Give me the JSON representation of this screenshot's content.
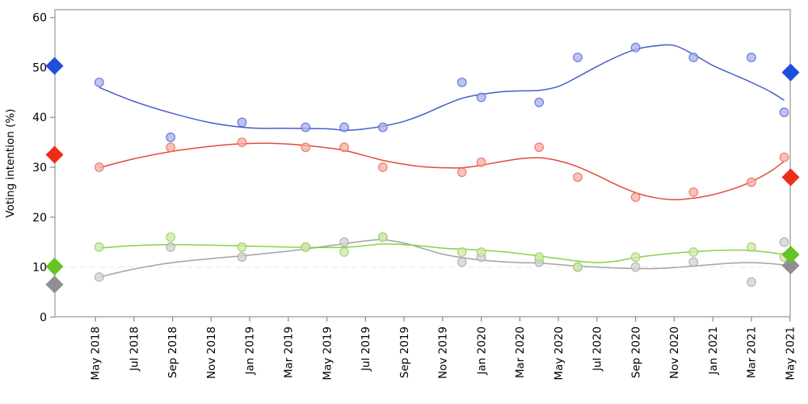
{
  "chart_data": {
    "type": "scatter",
    "title": "",
    "xlabel": "",
    "ylabel": "Voting intention (%)",
    "ylim": [
      0,
      60
    ],
    "yticks": [
      0,
      10,
      20,
      30,
      40,
      50,
      60
    ],
    "grid": "off",
    "legend": "none",
    "x_tick_labels": [
      "May 2018",
      "Jul 2018",
      "Sep 2018",
      "Nov 2018",
      "Jan 2019",
      "Mar 2019",
      "May 2019",
      "Jul 2019",
      "Sep 2019",
      "Nov 2019",
      "Jan 2020",
      "Mar 2020",
      "May 2020",
      "Jul 2020",
      "Sep 2020",
      "Nov 2020",
      "Jan 2021",
      "Mar 2021",
      "May 2021"
    ],
    "reference_line": {
      "value": 10,
      "style": "dashed",
      "color": "#ededed"
    },
    "frame_color": "#a6a6a6",
    "tick_color": "#8c8c8c",
    "poll_dates": [
      "May 2018",
      "Sep 2018",
      "Dec 2018",
      "Apr 2019",
      "Jun 2019",
      "Aug 2019",
      "Dec 2019",
      "Jan 2020",
      "Apr 2020",
      "Jun 2020",
      "Sep 2020",
      "Dec 2020",
      "Mar 2021",
      "May 2021"
    ],
    "poll_month_index": [
      0.2,
      3.9,
      7.6,
      10.9,
      12.9,
      14.9,
      19,
      20,
      23,
      25,
      28,
      31,
      34,
      35.7
    ],
    "series": [
      {
        "name": "blue",
        "line_color": "#3c56c6",
        "point_fill": "#aab4ee",
        "point_stroke": "#5768d2",
        "diamond_color": "#1d4fdb",
        "values": [
          47,
          36,
          39,
          38,
          38,
          38,
          47,
          44,
          43,
          52,
          54,
          52,
          52,
          41
        ],
        "start_diamond": 50.3,
        "end_diamond": 49,
        "smooth": [
          [
            0.2,
            46
          ],
          [
            2,
            43.2
          ],
          [
            4,
            40.8
          ],
          [
            6,
            38.9
          ],
          [
            8,
            37.9
          ],
          [
            10,
            37.8
          ],
          [
            12,
            37.7
          ],
          [
            13,
            37.4
          ],
          [
            14,
            37.7
          ],
          [
            15,
            38.3
          ],
          [
            16,
            39.2
          ],
          [
            17,
            40.6
          ],
          [
            18,
            42.3
          ],
          [
            19,
            43.8
          ],
          [
            20,
            44.6
          ],
          [
            21,
            45.1
          ],
          [
            22,
            45.3
          ],
          [
            23,
            45.4
          ],
          [
            24,
            46.2
          ],
          [
            25,
            48.1
          ],
          [
            26,
            50.2
          ],
          [
            27,
            52.1
          ],
          [
            28,
            53.6
          ],
          [
            29,
            54.3
          ],
          [
            30,
            54.4
          ],
          [
            31,
            52.6
          ],
          [
            32,
            50.4
          ],
          [
            33,
            48.7
          ],
          [
            34,
            47
          ],
          [
            35,
            45.1
          ],
          [
            35.7,
            43.4
          ]
        ]
      },
      {
        "name": "red",
        "line_color": "#e0422e",
        "point_fill": "#f9aea6",
        "point_stroke": "#e8705f",
        "diamond_color": "#ee2d17",
        "values": [
          30,
          34,
          35,
          34,
          34,
          30,
          29,
          31,
          34,
          28,
          24,
          25,
          27,
          32
        ],
        "start_diamond": 32.5,
        "end_diamond": 28,
        "smooth": [
          [
            0.2,
            29.9
          ],
          [
            2,
            31.7
          ],
          [
            4,
            33.2
          ],
          [
            6,
            34.2
          ],
          [
            7.5,
            34.7
          ],
          [
            9,
            34.8
          ],
          [
            10.5,
            34.5
          ],
          [
            12,
            33.9
          ],
          [
            13,
            33.3
          ],
          [
            14,
            32.3
          ],
          [
            15,
            31.3
          ],
          [
            16,
            30.6
          ],
          [
            17,
            30.1
          ],
          [
            18,
            29.9
          ],
          [
            19,
            29.9
          ],
          [
            20,
            30.4
          ],
          [
            21,
            31.1
          ],
          [
            22,
            31.7
          ],
          [
            23,
            31.9
          ],
          [
            24,
            31.3
          ],
          [
            25,
            30.1
          ],
          [
            26,
            28.4
          ],
          [
            27,
            26.5
          ],
          [
            28,
            24.9
          ],
          [
            29,
            23.9
          ],
          [
            30,
            23.5
          ],
          [
            31,
            23.8
          ],
          [
            32,
            24.5
          ],
          [
            33,
            25.6
          ],
          [
            34,
            27.1
          ],
          [
            35,
            29.2
          ],
          [
            35.7,
            31.2
          ]
        ]
      },
      {
        "name": "green",
        "line_color": "#7fd03c",
        "point_fill": "#cfe9ab",
        "point_stroke": "#98cf5e",
        "diamond_color": "#64c421",
        "values": [
          14,
          16,
          14,
          14,
          13,
          16,
          13,
          13,
          12,
          10,
          12,
          13,
          14,
          12
        ],
        "start_diamond": 10.1,
        "end_diamond": 12.5,
        "smooth": [
          [
            0.2,
            13.8
          ],
          [
            2,
            14.3
          ],
          [
            4,
            14.5
          ],
          [
            6,
            14.4
          ],
          [
            8,
            14.2
          ],
          [
            10,
            14
          ],
          [
            12,
            13.9
          ],
          [
            13.5,
            14.1
          ],
          [
            14.8,
            14.6
          ],
          [
            16,
            14.5
          ],
          [
            17,
            14.2
          ],
          [
            18,
            13.8
          ],
          [
            19,
            13.6
          ],
          [
            20,
            13.4
          ],
          [
            21,
            13.1
          ],
          [
            22,
            12.7
          ],
          [
            23,
            12.2
          ],
          [
            24,
            11.7
          ],
          [
            25,
            11.2
          ],
          [
            26,
            10.9
          ],
          [
            27,
            11.2
          ],
          [
            28,
            11.9
          ],
          [
            29,
            12.4
          ],
          [
            30,
            12.8
          ],
          [
            31,
            13.1
          ],
          [
            32,
            13.3
          ],
          [
            33,
            13.4
          ],
          [
            34,
            13.3
          ],
          [
            35,
            12.9
          ],
          [
            35.7,
            12.5
          ]
        ]
      },
      {
        "name": "gray",
        "line_color": "#9e9e9e",
        "point_fill": "#d3d3d3",
        "point_stroke": "#ababab",
        "diamond_color": "#8f8f8f",
        "values": [
          8,
          14,
          12,
          14,
          15,
          16,
          11,
          12,
          11,
          10,
          10,
          11,
          7,
          15
        ],
        "start_diamond": 6.5,
        "end_diamond": 10.3,
        "smooth": [
          [
            0.2,
            8
          ],
          [
            2,
            9.6
          ],
          [
            4,
            10.9
          ],
          [
            6,
            11.7
          ],
          [
            8,
            12.4
          ],
          [
            10,
            13.2
          ],
          [
            12,
            14.2
          ],
          [
            13.5,
            15
          ],
          [
            14.8,
            15.5
          ],
          [
            16,
            14.8
          ],
          [
            17,
            13.7
          ],
          [
            18,
            12.6
          ],
          [
            19,
            11.9
          ],
          [
            20,
            11.4
          ],
          [
            21,
            11.1
          ],
          [
            22,
            10.9
          ],
          [
            23,
            10.8
          ],
          [
            24,
            10.5
          ],
          [
            25,
            10.2
          ],
          [
            26,
            10
          ],
          [
            27,
            9.8
          ],
          [
            28,
            9.7
          ],
          [
            29,
            9.7
          ],
          [
            30,
            9.9
          ],
          [
            31,
            10.2
          ],
          [
            32,
            10.5
          ],
          [
            33,
            10.8
          ],
          [
            34,
            10.9
          ],
          [
            35,
            10.7
          ],
          [
            35.7,
            10.4
          ]
        ]
      }
    ]
  }
}
